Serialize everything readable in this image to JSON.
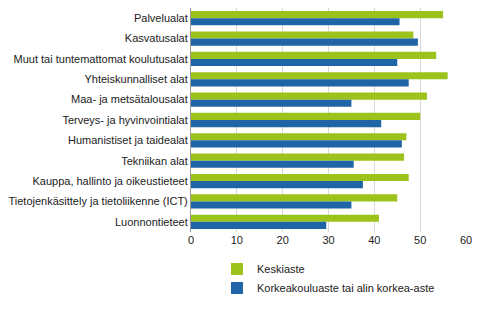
{
  "chart_data": {
    "type": "bar",
    "orientation": "horizontal",
    "categories": [
      "Palvelualat",
      "Kasvatusalat",
      "Muut tai tuntemattomat koulutusalat",
      "Yhteiskunnalliset alat",
      "Maa- ja metsätalousalat",
      "Terveys- ja hyvinvointialat",
      "Humanistiset ja taidealat",
      "Tekniikan alat",
      "Kauppa, hallinto ja oikeustieteet",
      "Tietojenkäsittely ja tietoliikenne (ICT)",
      "Luonnontieteet"
    ],
    "series": [
      {
        "name": "Keskiaste",
        "color": "#9bc31c",
        "values": [
          55,
          48.5,
          53.5,
          56,
          51.5,
          50,
          47,
          46.5,
          47.5,
          45,
          41
        ]
      },
      {
        "name": "Korkeakouluaste tai alin korkea-aste",
        "color": "#1f65a6",
        "values": [
          45.5,
          49.5,
          45,
          47.5,
          35,
          41.5,
          46,
          35.5,
          37.5,
          35,
          29.5
        ]
      }
    ],
    "xlim": [
      0,
      60
    ],
    "xticks": [
      0,
      10,
      20,
      30,
      40,
      50,
      60
    ],
    "grid": true,
    "legend": "bottom"
  }
}
